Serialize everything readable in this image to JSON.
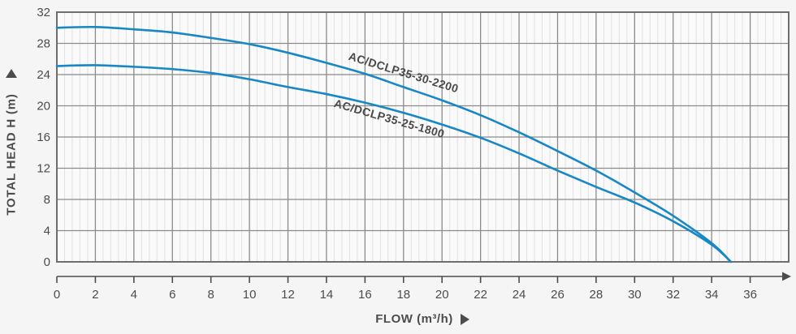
{
  "colors": {
    "background": "#f5f5f6",
    "plot_fill": "#fafafa",
    "minor_grid": "#e1e1e1",
    "major_grid": "#8b8b8b",
    "plot_border": "#6e6e6e",
    "curve": "#1787c5",
    "text": "#4c4c4c"
  },
  "y_axis": {
    "title": "TOTAL HEAD H (m)",
    "arrow_icon": "up-triangle"
  },
  "x_axis": {
    "title": "FLOW (m³/h)",
    "arrow_icon": "right-triangle"
  },
  "chart_data": {
    "type": "line",
    "title": "",
    "xlabel": "FLOW (m³/h)",
    "ylabel": "TOTAL HEAD H (m)",
    "xlim": [
      0,
      38
    ],
    "ylim": [
      0,
      32
    ],
    "x_ticks": [
      0,
      2,
      4,
      6,
      8,
      10,
      12,
      14,
      16,
      18,
      20,
      22,
      24,
      26,
      28,
      30,
      32,
      34,
      36
    ],
    "y_ticks": [
      0,
      4,
      8,
      12,
      16,
      20,
      24,
      28,
      32
    ],
    "grid": {
      "major_x_step": 2,
      "major_y_step": 4,
      "minor_x_step": 0.4,
      "minor_horizontal": false
    },
    "legend_position": "labels-on-curves",
    "x": [
      0,
      2,
      4,
      6,
      8,
      10,
      12,
      14,
      16,
      18,
      20,
      22,
      24,
      26,
      28,
      30,
      32,
      34,
      35
    ],
    "series": [
      {
        "name": "AC/DCLP35-30-2200",
        "values": [
          30.0,
          30.1,
          29.8,
          29.4,
          28.7,
          27.9,
          26.8,
          25.5,
          24.1,
          22.4,
          20.7,
          18.8,
          16.6,
          14.2,
          11.7,
          8.9,
          5.9,
          2.4,
          0.0
        ]
      },
      {
        "name": "AC/DCLP35-25-1800",
        "values": [
          25.1,
          25.2,
          25.0,
          24.7,
          24.2,
          23.4,
          22.4,
          21.5,
          20.4,
          19.1,
          17.6,
          15.9,
          13.9,
          11.7,
          9.6,
          7.6,
          5.2,
          2.2,
          0.0
        ]
      }
    ]
  }
}
